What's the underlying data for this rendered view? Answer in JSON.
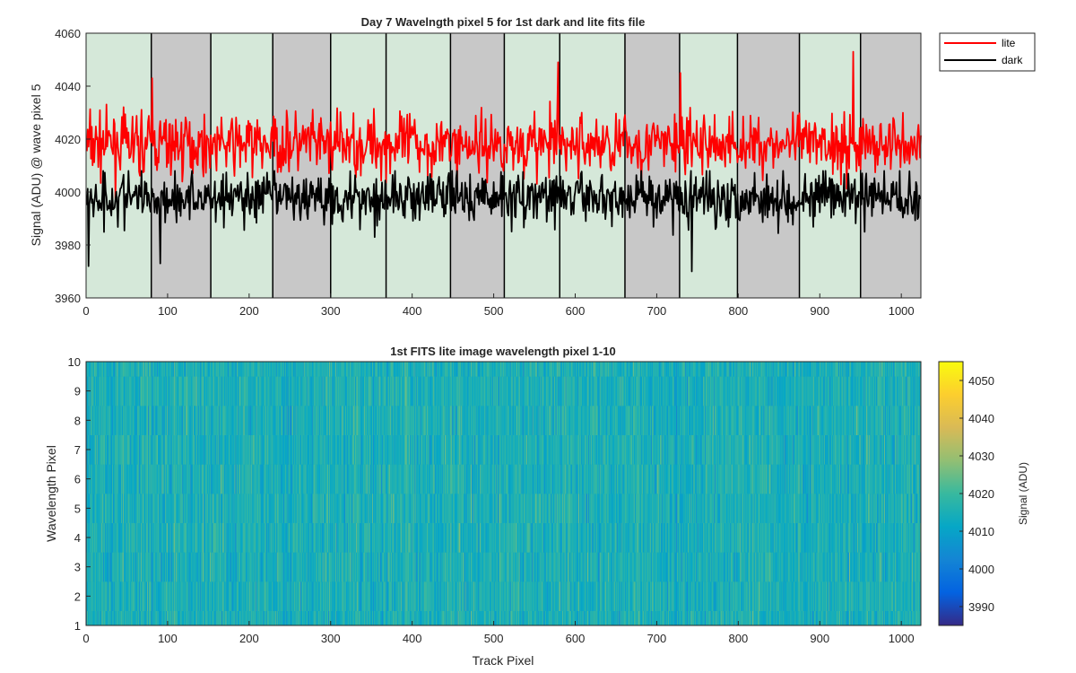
{
  "colors": {
    "lite": "#ff0000",
    "dark": "#000000",
    "band_green": "#d5e8d9",
    "band_gray": "#c8c8c8",
    "axis": "#262626"
  },
  "chart_data": [
    {
      "type": "line",
      "title": "Day 7 Wavelngth pixel 5 for 1st dark and lite fits file",
      "xlabel": "",
      "ylabel": "Signal (ADU) @ wave pixel 5",
      "xlim": [
        0,
        1024
      ],
      "ylim": [
        3960,
        4060
      ],
      "x_ticks": [
        0,
        100,
        200,
        300,
        400,
        500,
        600,
        700,
        800,
        900,
        1000
      ],
      "y_ticks": [
        3960,
        3980,
        4000,
        4020,
        4040,
        4060
      ],
      "grid": false,
      "legend_position": "outside-top-right",
      "band_boundaries": [
        0,
        80,
        153,
        229,
        300,
        368,
        447,
        513,
        581,
        661,
        728,
        799,
        875,
        950,
        1024
      ],
      "band_colors": [
        "green",
        "gray",
        "green",
        "gray",
        "green",
        "green",
        "gray",
        "green",
        "green",
        "gray",
        "green",
        "gray",
        "green",
        "gray"
      ],
      "series": [
        {
          "name": "lite",
          "color": "#ff0000",
          "n_points": 1024,
          "mean": 4018,
          "spread": 7,
          "min": 3997,
          "max": 4053,
          "notable_peaks": [
            {
              "x": 80,
              "y": 4043
            },
            {
              "x": 578,
              "y": 4049
            },
            {
              "x": 728,
              "y": 4045
            },
            {
              "x": 940,
              "y": 4053
            }
          ]
        },
        {
          "name": "dark",
          "color": "#000000",
          "n_points": 1024,
          "mean": 3998,
          "spread": 6,
          "min": 3970,
          "max": 4012,
          "notable_dips": [
            {
              "x": 2,
              "y": 3972
            },
            {
              "x": 90,
              "y": 3973
            },
            {
              "x": 742,
              "y": 3970
            }
          ]
        }
      ]
    },
    {
      "type": "heatmap",
      "title": "1st FITS lite image wavelength pixel 1-10",
      "xlabel": "Track Pixel",
      "ylabel": "Wavelength Pixel",
      "xlim": [
        0,
        1024
      ],
      "ylim": [
        1,
        10
      ],
      "x_ticks": [
        0,
        100,
        200,
        300,
        400,
        500,
        600,
        700,
        800,
        900,
        1000
      ],
      "y_ticks": [
        1,
        2,
        3,
        4,
        5,
        6,
        7,
        8,
        9,
        10
      ],
      "rows": 10,
      "columns": 1024,
      "colorbar": {
        "label": "Signal (ADU)",
        "range": [
          3985,
          4055
        ],
        "ticks": [
          3990,
          4000,
          4010,
          4020,
          4030,
          4040,
          4050
        ],
        "colormap": "parula",
        "colormap_stops": [
          "#352a87",
          "#0363e1",
          "#1485d4",
          "#06a7c6",
          "#38b99e",
          "#92bf73",
          "#d9ba56",
          "#fcce2e",
          "#f9fb0e"
        ]
      },
      "value_mean": 4015,
      "value_spread": 6
    }
  ]
}
